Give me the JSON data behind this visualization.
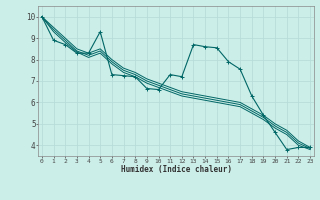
{
  "xlabel": "Humidex (Indice chaleur)",
  "bg_color": "#cceee8",
  "grid_color": "#b8ddd8",
  "line_color": "#006666",
  "x_ticks": [
    0,
    1,
    2,
    3,
    4,
    5,
    6,
    7,
    8,
    9,
    10,
    11,
    12,
    13,
    14,
    15,
    16,
    17,
    18,
    19,
    20,
    21,
    22,
    23
  ],
  "y_ticks": [
    4,
    5,
    6,
    7,
    8,
    9,
    10
  ],
  "xlim": [
    -0.3,
    23.3
  ],
  "ylim": [
    3.5,
    10.5
  ],
  "series_main": [
    10.0,
    8.9,
    8.7,
    8.3,
    8.3,
    9.3,
    7.3,
    7.25,
    7.2,
    6.65,
    6.6,
    7.3,
    7.2,
    8.7,
    8.6,
    8.55,
    7.9,
    7.55,
    6.3,
    5.4,
    4.6,
    3.8,
    3.9,
    3.9
  ],
  "series_lines": [
    [
      10.0,
      9.5,
      9.0,
      8.5,
      8.3,
      8.5,
      8.0,
      7.6,
      7.4,
      7.1,
      6.9,
      6.7,
      6.5,
      6.4,
      6.3,
      6.2,
      6.1,
      6.0,
      5.7,
      5.4,
      5.0,
      4.7,
      4.2,
      3.9
    ],
    [
      10.0,
      9.4,
      8.9,
      8.4,
      8.2,
      8.4,
      7.9,
      7.5,
      7.3,
      7.0,
      6.8,
      6.6,
      6.4,
      6.3,
      6.2,
      6.1,
      6.0,
      5.9,
      5.6,
      5.3,
      4.9,
      4.6,
      4.1,
      3.85
    ],
    [
      10.0,
      9.3,
      8.8,
      8.35,
      8.1,
      8.3,
      7.8,
      7.4,
      7.2,
      6.9,
      6.7,
      6.5,
      6.3,
      6.2,
      6.1,
      6.0,
      5.9,
      5.8,
      5.5,
      5.2,
      4.8,
      4.5,
      4.0,
      3.8
    ]
  ]
}
